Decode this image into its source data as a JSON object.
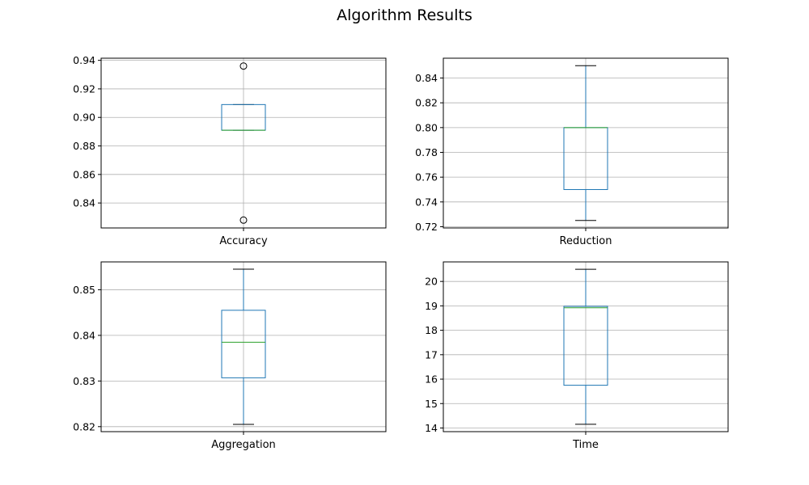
{
  "figure": {
    "title": "Algorithm Results"
  },
  "colors": {
    "box": "#1f77b4",
    "median": "#2ca02c",
    "whisker": "#1f77b4",
    "cap": "#000000",
    "grid": "#b0b0b0",
    "flier": "#000000"
  },
  "chart_data": [
    {
      "type": "box",
      "category": "Accuracy",
      "grid": true,
      "ylim": [
        0.8225,
        0.9415
      ],
      "yticks": [
        0.84,
        0.86,
        0.88,
        0.9,
        0.92,
        0.94
      ],
      "ytick_labels": [
        "0.84",
        "0.86",
        "0.88",
        "0.90",
        "0.92",
        "0.94"
      ],
      "whisker_low": 0.891,
      "q1": 0.891,
      "median": 0.891,
      "q3": 0.909,
      "whisker_high": 0.909,
      "fliers": [
        0.828,
        0.936
      ]
    },
    {
      "type": "box",
      "category": "Reduction",
      "grid": true,
      "ylim": [
        0.719,
        0.856
      ],
      "yticks": [
        0.72,
        0.74,
        0.76,
        0.78,
        0.8,
        0.82,
        0.84
      ],
      "ytick_labels": [
        "0.72",
        "0.74",
        "0.76",
        "0.78",
        "0.80",
        "0.82",
        "0.84"
      ],
      "whisker_low": 0.725,
      "q1": 0.75,
      "median": 0.8,
      "q3": 0.8,
      "whisker_high": 0.85,
      "fliers": []
    },
    {
      "type": "box",
      "category": "Aggregation",
      "grid": true,
      "ylim": [
        0.8189,
        0.8561
      ],
      "yticks": [
        0.82,
        0.83,
        0.84,
        0.85
      ],
      "ytick_labels": [
        "0.82",
        "0.83",
        "0.84",
        "0.85"
      ],
      "whisker_low": 0.8205,
      "q1": 0.8307,
      "median": 0.8385,
      "q3": 0.8455,
      "whisker_high": 0.8545,
      "fliers": []
    },
    {
      "type": "box",
      "category": "Time",
      "grid": true,
      "ylim": [
        13.85,
        20.8
      ],
      "yticks": [
        14,
        15,
        16,
        17,
        18,
        19,
        20
      ],
      "ytick_labels": [
        "14",
        "15",
        "16",
        "17",
        "18",
        "19",
        "20"
      ],
      "whisker_low": 14.15,
      "q1": 15.75,
      "median": 18.92,
      "q3": 18.98,
      "whisker_high": 20.5,
      "fliers": []
    }
  ]
}
